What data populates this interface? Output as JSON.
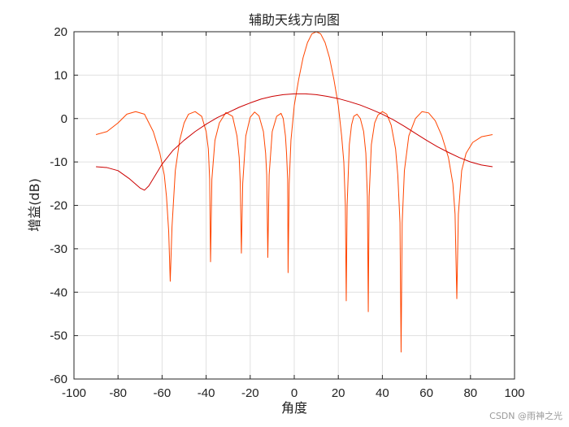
{
  "chart_data": {
    "type": "line",
    "title": "辅助天线方向图",
    "xlabel": "角度",
    "ylabel": "增益(dB)",
    "xlim": [
      -100,
      100
    ],
    "ylim": [
      -60,
      20
    ],
    "xticks": [
      -100,
      -80,
      -60,
      -40,
      -20,
      0,
      20,
      40,
      60,
      80,
      100
    ],
    "yticks": [
      -60,
      -50,
      -40,
      -30,
      -20,
      -10,
      0,
      10,
      20
    ],
    "grid": true,
    "series": [
      {
        "color": "#ff4500",
        "points": [
          [
            -90,
            -3.7
          ],
          [
            -85,
            -3.0
          ],
          [
            -80,
            -1.0
          ],
          [
            -76,
            1.0
          ],
          [
            -72,
            1.6
          ],
          [
            -68,
            1.0
          ],
          [
            -64,
            -3.0
          ],
          [
            -61,
            -8.0
          ],
          [
            -59,
            -13.0
          ],
          [
            -58,
            -18.0
          ],
          [
            -57,
            -26.0
          ],
          [
            -56.3,
            -37.5
          ],
          [
            -55.5,
            -25.0
          ],
          [
            -54,
            -12.0
          ],
          [
            -52,
            -5.0
          ],
          [
            -50,
            -1.0
          ],
          [
            -48,
            1.0
          ],
          [
            -45,
            1.6
          ],
          [
            -42,
            0.5
          ],
          [
            -40,
            -3.0
          ],
          [
            -39,
            -7.0
          ],
          [
            -38.4,
            -14.0
          ],
          [
            -38,
            -33.0
          ],
          [
            -37.4,
            -14.0
          ],
          [
            -36,
            -5.0
          ],
          [
            -34,
            -1.0
          ],
          [
            -31,
            1.4
          ],
          [
            -28,
            0.5
          ],
          [
            -26,
            -4.0
          ],
          [
            -25,
            -9.0
          ],
          [
            -24.5,
            -15.0
          ],
          [
            -24,
            -31.0
          ],
          [
            -23.4,
            -15.0
          ],
          [
            -22,
            -4.0
          ],
          [
            -20,
            0.3
          ],
          [
            -18,
            1.5
          ],
          [
            -16,
            0.6
          ],
          [
            -14,
            -3.0
          ],
          [
            -13,
            -8.0
          ],
          [
            -12.5,
            -13.0
          ],
          [
            -12,
            -32.0
          ],
          [
            -11.4,
            -13.0
          ],
          [
            -10,
            -3.0
          ],
          [
            -8,
            0.5
          ],
          [
            -6,
            1.2
          ],
          [
            -5,
            0.0
          ],
          [
            -4,
            -4.0
          ],
          [
            -3.5,
            -8.0
          ],
          [
            -3,
            -14.0
          ],
          [
            -2.8,
            -35.5
          ],
          [
            -2.3,
            -15.0
          ],
          [
            -1.5,
            -5.0
          ],
          [
            0,
            3.0
          ],
          [
            2,
            9.0
          ],
          [
            4,
            14.0
          ],
          [
            6,
            17.5
          ],
          [
            8,
            19.5
          ],
          [
            10,
            20.0
          ],
          [
            12,
            19.5
          ],
          [
            14,
            17.5
          ],
          [
            16,
            14.0
          ],
          [
            18,
            9.0
          ],
          [
            20,
            3.0
          ],
          [
            21.5,
            -4.0
          ],
          [
            22.5,
            -10.0
          ],
          [
            23.2,
            -20.0
          ],
          [
            23.6,
            -42.0
          ],
          [
            24,
            -20.0
          ],
          [
            25,
            -6.0
          ],
          [
            26,
            -1.5
          ],
          [
            27,
            0.5
          ],
          [
            28.5,
            1.0
          ],
          [
            30,
            0.0
          ],
          [
            31.5,
            -3.0
          ],
          [
            32.5,
            -8.0
          ],
          [
            33.2,
            -18.0
          ],
          [
            33.6,
            -44.5
          ],
          [
            34,
            -18.0
          ],
          [
            35,
            -6.0
          ],
          [
            36.5,
            -1.0
          ],
          [
            38,
            0.8
          ],
          [
            40,
            1.6
          ],
          [
            42,
            1.0
          ],
          [
            44,
            -1.5
          ],
          [
            46,
            -7.0
          ],
          [
            47,
            -13.0
          ],
          [
            48,
            -24.0
          ],
          [
            48.5,
            -53.8
          ],
          [
            49,
            -24.0
          ],
          [
            50,
            -12.0
          ],
          [
            52,
            -4.0
          ],
          [
            55,
            0.0
          ],
          [
            58,
            1.6
          ],
          [
            61,
            1.3
          ],
          [
            64,
            -0.5
          ],
          [
            67,
            -4.0
          ],
          [
            70,
            -9.0
          ],
          [
            72,
            -15.0
          ],
          [
            73,
            -22.0
          ],
          [
            73.8,
            -41.5
          ],
          [
            74.5,
            -22.0
          ],
          [
            76,
            -12.0
          ],
          [
            78,
            -8.0
          ],
          [
            81,
            -5.5
          ],
          [
            85,
            -4.2
          ],
          [
            90,
            -3.7
          ]
        ]
      },
      {
        "color": "#cc0000",
        "points": [
          [
            -90,
            -11.1
          ],
          [
            -85,
            -11.3
          ],
          [
            -80,
            -12.0
          ],
          [
            -75,
            -13.8
          ],
          [
            -70,
            -16.0
          ],
          [
            -68,
            -16.5
          ],
          [
            -66,
            -15.5
          ],
          [
            -63,
            -13.0
          ],
          [
            -60,
            -10.5
          ],
          [
            -55,
            -7.3
          ],
          [
            -50,
            -5.0
          ],
          [
            -45,
            -3.0
          ],
          [
            -40,
            -1.3
          ],
          [
            -35,
            0.2
          ],
          [
            -30,
            1.4
          ],
          [
            -25,
            2.6
          ],
          [
            -20,
            3.6
          ],
          [
            -15,
            4.5
          ],
          [
            -10,
            5.1
          ],
          [
            -5,
            5.5
          ],
          [
            0,
            5.7
          ],
          [
            5,
            5.7
          ],
          [
            10,
            5.5
          ],
          [
            15,
            5.1
          ],
          [
            20,
            4.6
          ],
          [
            25,
            3.9
          ],
          [
            30,
            3.1
          ],
          [
            35,
            2.1
          ],
          [
            40,
            1.0
          ],
          [
            45,
            -0.3
          ],
          [
            50,
            -1.8
          ],
          [
            55,
            -3.4
          ],
          [
            60,
            -5.0
          ],
          [
            65,
            -6.5
          ],
          [
            70,
            -7.8
          ],
          [
            75,
            -9.0
          ],
          [
            80,
            -10.0
          ],
          [
            85,
            -10.7
          ],
          [
            90,
            -11.1
          ]
        ]
      }
    ]
  },
  "watermark": "CSDN @雨神之光"
}
